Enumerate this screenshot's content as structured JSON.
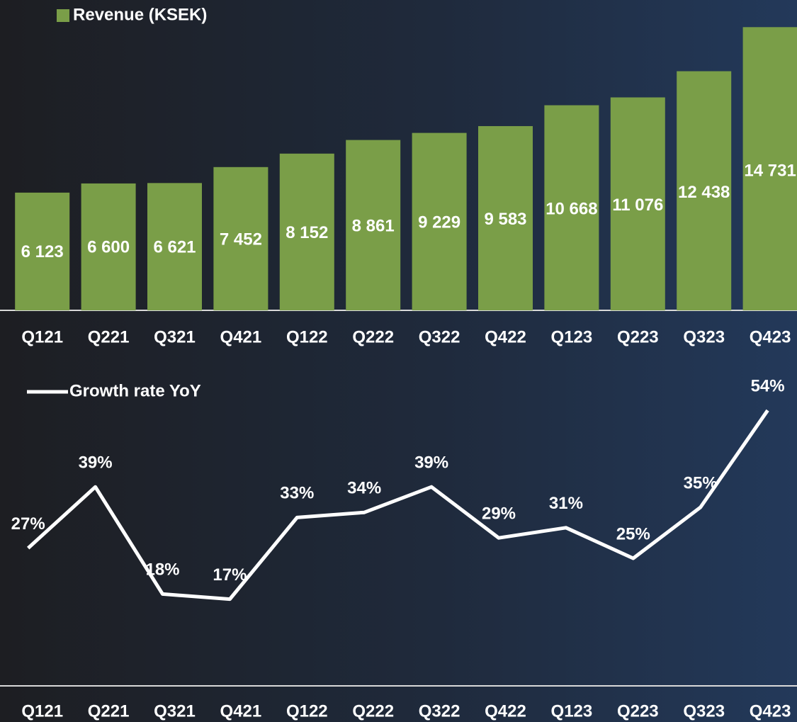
{
  "chart_data": [
    {
      "type": "bar",
      "categories": [
        "Q121",
        "Q221",
        "Q321",
        "Q421",
        "Q122",
        "Q222",
        "Q322",
        "Q422",
        "Q123",
        "Q223",
        "Q323",
        "Q423"
      ],
      "series": [
        {
          "name": "Revenue (KSEK)",
          "color": "#7a9e48",
          "values": [
            6123,
            6600,
            6621,
            7452,
            8152,
            8861,
            9229,
            9583,
            10668,
            11076,
            12438,
            14731
          ],
          "value_labels": [
            "6 123",
            "6 600",
            "6 621",
            "7 452",
            "8 152",
            "8 861",
            "9 229",
            "9 583",
            "10 668",
            "11 076",
            "12 438",
            "14 731"
          ]
        }
      ],
      "ylim": [
        0,
        15000
      ]
    },
    {
      "type": "line",
      "categories": [
        "Q121",
        "Q221",
        "Q321",
        "Q421",
        "Q122",
        "Q222",
        "Q322",
        "Q422",
        "Q123",
        "Q223",
        "Q323",
        "Q423"
      ],
      "series": [
        {
          "name": "Growth rate YoY",
          "color": "#ffffff",
          "values": [
            27,
            39,
            18,
            17,
            33,
            34,
            39,
            29,
            31,
            25,
            35,
            54
          ],
          "value_labels": [
            "27%",
            "39%",
            "18%",
            "17%",
            "33%",
            "34%",
            "39%",
            "29%",
            "31%",
            "25%",
            "35%",
            "54%"
          ]
        }
      ],
      "ylim": [
        0,
        60
      ]
    }
  ]
}
